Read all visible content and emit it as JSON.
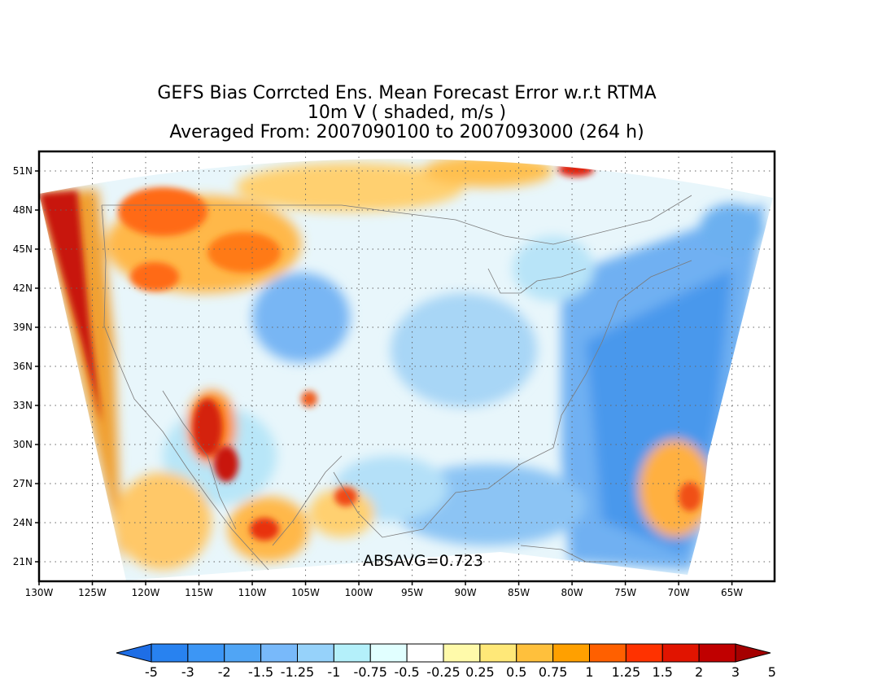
{
  "title": {
    "line1": "GEFS Bias Corrcted Ens. Mean Forecast Error w.r.t RTMA",
    "line2": "10m V ( shaded, m/s )",
    "line3": "Averaged From: 2007090100 to 2007093000 (264 h)"
  },
  "annotation": "ABSAVG=0.723",
  "map": {
    "lon_range": [
      -130,
      -61
    ],
    "lat_range": [
      19.5,
      52.5
    ],
    "lon_ticks": [
      "130W",
      "125W",
      "120W",
      "115W",
      "110W",
      "105W",
      "100W",
      "95W",
      "90W",
      "85W",
      "80W",
      "75W",
      "70W",
      "65W"
    ],
    "lat_ticks": [
      "21N",
      "24N",
      "27N",
      "30N",
      "33N",
      "36N",
      "39N",
      "42N",
      "45N",
      "48N",
      "51N"
    ],
    "grid": true
  },
  "colorbar": {
    "labels": [
      "-5",
      "-3",
      "-2",
      "-1.5",
      "-1.25",
      "-1",
      "-0.75",
      "-0.5",
      "-0.25",
      "0.25",
      "0.5",
      "0.75",
      "1",
      "1.25",
      "1.5",
      "2",
      "3",
      "5"
    ],
    "colors": [
      "#1e6ee6",
      "#2882f0",
      "#3c96f5",
      "#50a5f5",
      "#78b9fa",
      "#96d2fa",
      "#b4f0fa",
      "#e1ffff",
      "#ffffff",
      "#fffaaa",
      "#ffe878",
      "#ffc03c",
      "#ffa000",
      "#ff6000",
      "#ff3200",
      "#e11400",
      "#c00000",
      "#a50000"
    ]
  }
}
